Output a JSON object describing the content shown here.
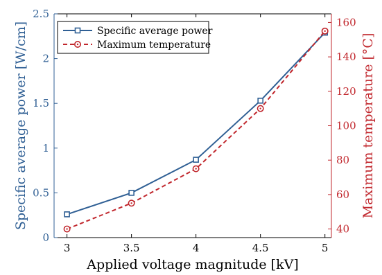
{
  "chart_data": {
    "type": "line",
    "xlabel": "Applied voltage magnitude [kV]",
    "x": [
      3,
      3.5,
      4,
      4.5,
      5
    ],
    "xlim": [
      2.9,
      5.05
    ],
    "xticks": [
      3,
      3.5,
      4,
      4.5,
      5
    ],
    "xtick_labels": [
      "3",
      "3.5",
      "4",
      "4.5",
      "5"
    ],
    "y_left": {
      "label": "Specific average power [W/cm]",
      "lim": [
        0,
        2.5
      ],
      "ticks": [
        0,
        0.5,
        1,
        1.5,
        2,
        2.5
      ],
      "tick_labels": [
        "0",
        "0.5",
        "1",
        "1.5",
        "2",
        "2.5"
      ],
      "color": "#2f5f94"
    },
    "y_right": {
      "label": "Maximum temperature [°C]",
      "lim": [
        35,
        165
      ],
      "ticks": [
        40,
        60,
        80,
        100,
        120,
        140,
        160
      ],
      "tick_labels": [
        "40",
        "60",
        "80",
        "100",
        "120",
        "140",
        "160"
      ],
      "color": "#c1272d"
    },
    "series": [
      {
        "name": "Specific average power",
        "axis": "left",
        "values": [
          0.26,
          0.5,
          0.87,
          1.53,
          2.29
        ],
        "color": "#2f5f94",
        "marker": "square",
        "line_style": "solid"
      },
      {
        "name": "Maximum temperature",
        "axis": "right",
        "values": [
          40,
          55,
          75,
          110,
          155
        ],
        "color": "#c1272d",
        "marker": "circle",
        "line_style": "dashed"
      }
    ],
    "legend": {
      "position": "top-left"
    },
    "grid": false
  }
}
